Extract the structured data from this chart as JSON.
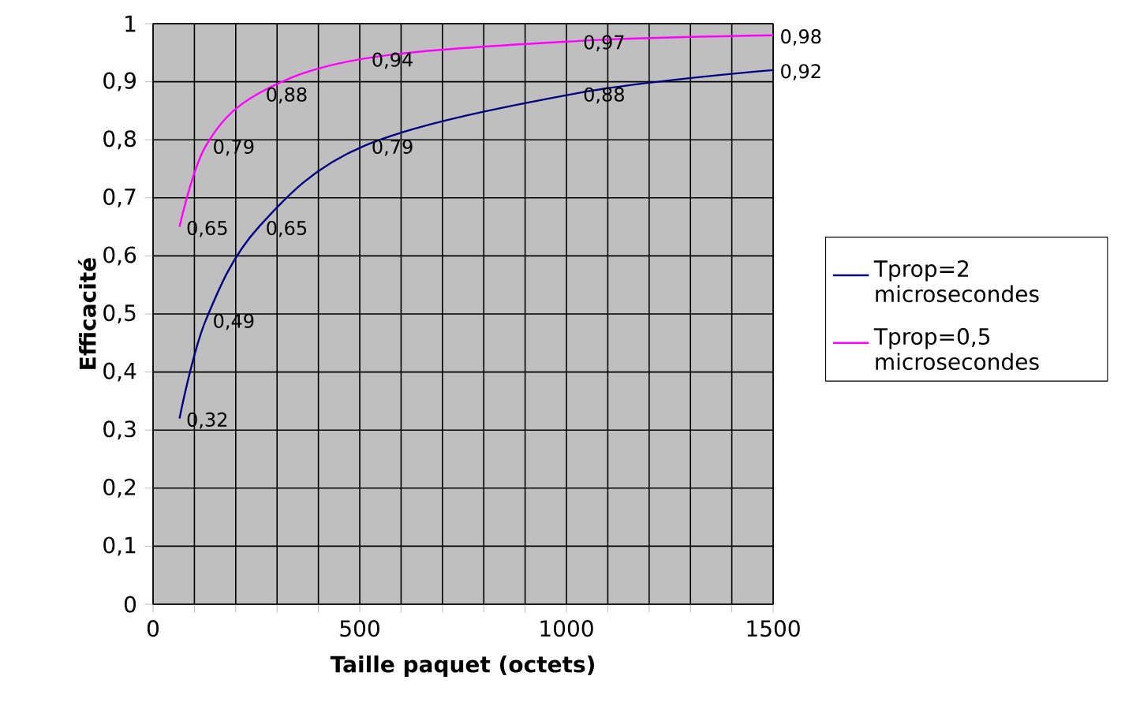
{
  "chart_data": {
    "type": "line",
    "xlabel": "Taille paquet (octets)",
    "ylabel": "Efficacité",
    "x": [
      64,
      128,
      256,
      512,
      1024,
      1500
    ],
    "series": [
      {
        "name": "Tprop=2 microsecondes",
        "color": "#000080",
        "values": [
          0.32,
          0.49,
          0.65,
          0.79,
          0.88,
          0.92
        ],
        "value_labels": [
          "0,32",
          "0,49",
          "0,65",
          "0,79",
          "0,88",
          "0,92"
        ]
      },
      {
        "name": "Tprop=0,5 microsecondes",
        "color": "#ff00ff",
        "values": [
          0.65,
          0.79,
          0.88,
          0.94,
          0.97,
          0.98
        ],
        "value_labels": [
          "0,65",
          "0,79",
          "0,88",
          "0,94",
          "0,97",
          "0,98"
        ]
      }
    ],
    "xlim": [
      0,
      1500
    ],
    "xticks": [
      0,
      {
        "value": 100,
        "label": null
      },
      {
        "value": 200,
        "label": null
      },
      {
        "value": 300,
        "label": null
      },
      {
        "value": 400,
        "label": null
      },
      500,
      {
        "value": 600,
        "label": null
      },
      {
        "value": 700,
        "label": null
      },
      {
        "value": 800,
        "label": null
      },
      {
        "value": 900,
        "label": null
      },
      1000,
      {
        "value": 1100,
        "label": null
      },
      {
        "value": 1200,
        "label": null
      },
      {
        "value": 1300,
        "label": null
      },
      {
        "value": 1400,
        "label": null
      },
      1500
    ],
    "ylim": [
      0,
      1
    ],
    "yticks": [
      0,
      {
        "value": 0.1,
        "label": "0,1"
      },
      {
        "value": 0.2,
        "label": "0,2"
      },
      {
        "value": 0.3,
        "label": "0,3"
      },
      {
        "value": 0.4,
        "label": "0,4"
      },
      {
        "value": 0.5,
        "label": "0,5"
      },
      {
        "value": 0.6,
        "label": "0,6"
      },
      {
        "value": 0.7,
        "label": "0,7"
      },
      {
        "value": 0.8,
        "label": "0,8"
      },
      {
        "value": 0.9,
        "label": "0,9"
      },
      1
    ],
    "grid": true,
    "legend": "right",
    "marker": "none"
  }
}
